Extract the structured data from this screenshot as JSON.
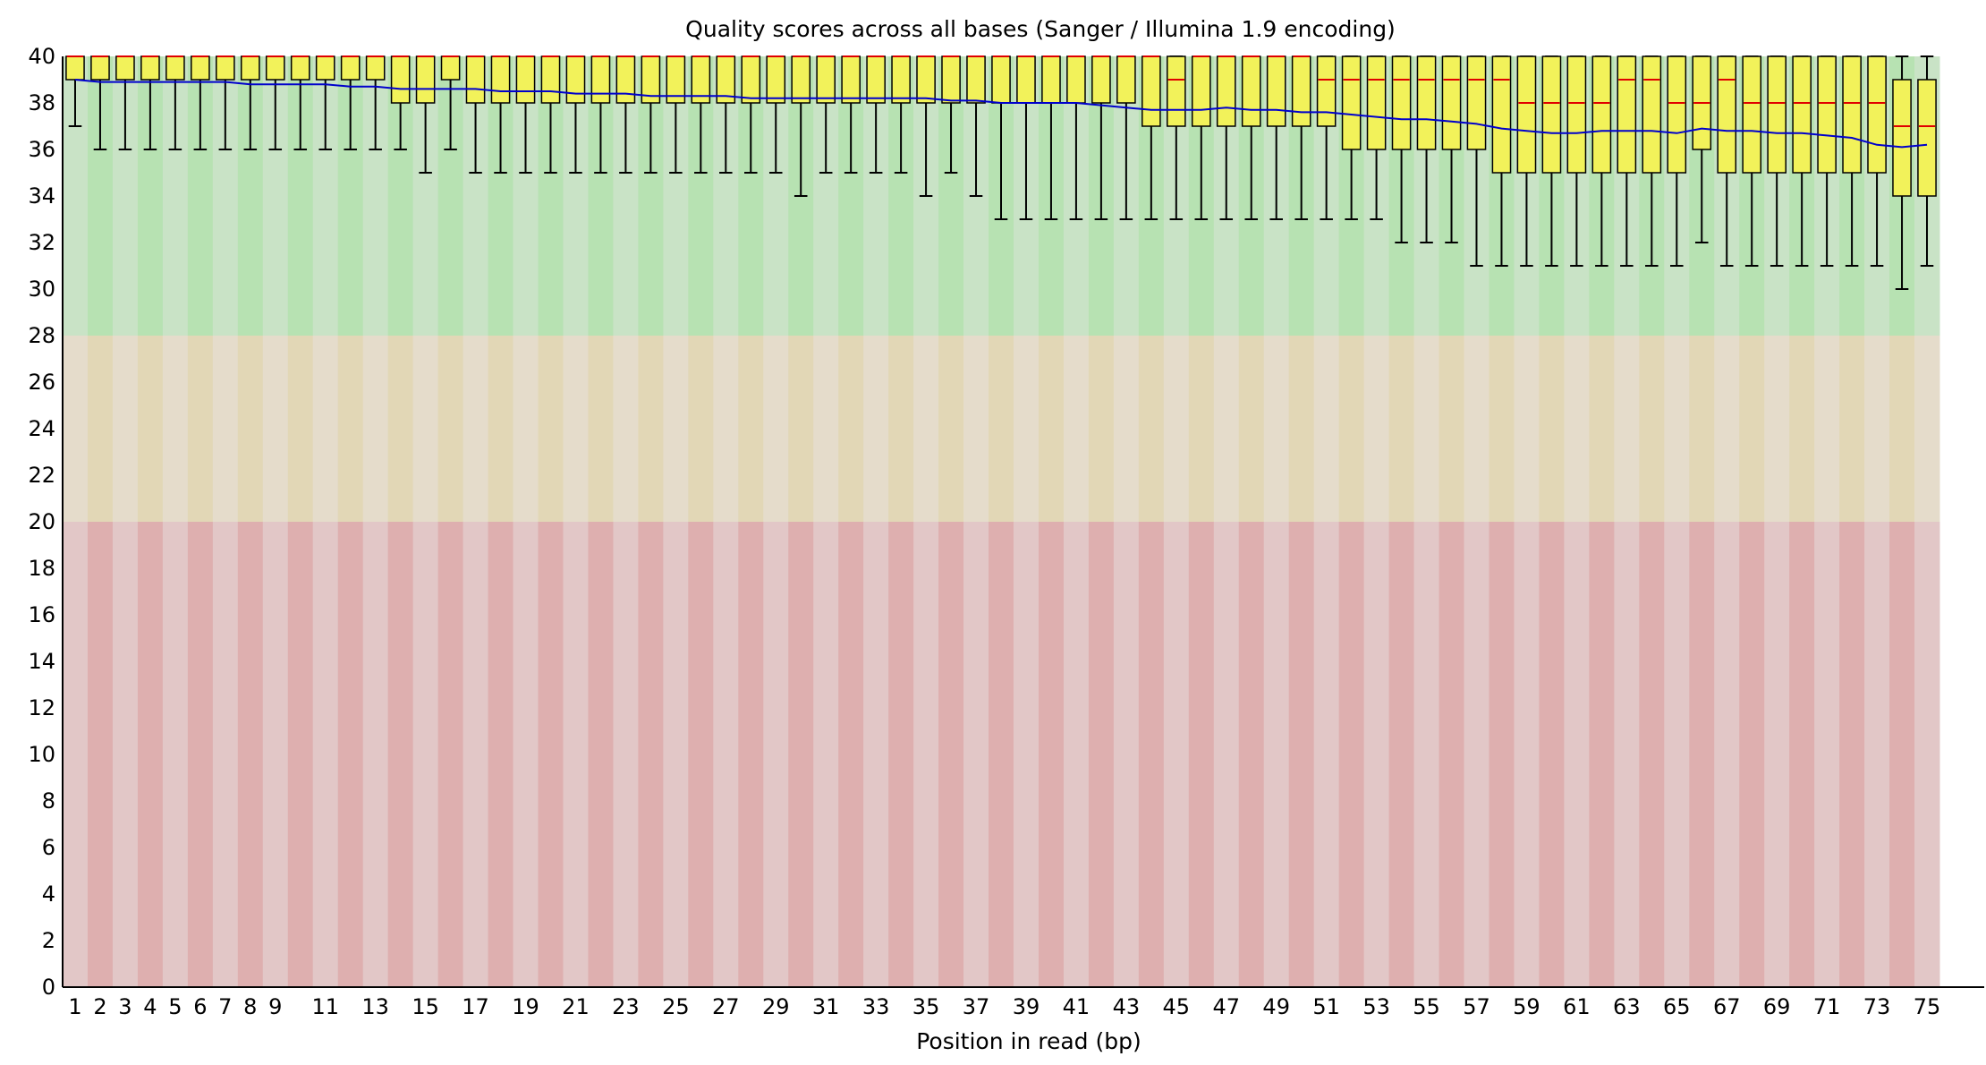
{
  "chart_data": {
    "type": "boxplot",
    "title": "Quality scores across all bases (Sanger / Illumina 1.9 encoding)",
    "xlabel": "Position in read (bp)",
    "ylabel": "",
    "ylim": [
      0,
      40
    ],
    "yticks": [
      0,
      2,
      4,
      6,
      8,
      10,
      12,
      14,
      16,
      18,
      20,
      22,
      24,
      26,
      28,
      30,
      32,
      34,
      36,
      38,
      40
    ],
    "xticks": [
      "1",
      "2",
      "3",
      "4",
      "5",
      "6",
      "7",
      "8",
      "9",
      "11",
      "13",
      "15",
      "17",
      "19",
      "21",
      "23",
      "25",
      "27",
      "29",
      "31",
      "33",
      "35",
      "37",
      "39",
      "41",
      "43",
      "45",
      "47",
      "49",
      "51",
      "53",
      "55",
      "57",
      "59",
      "61",
      "63",
      "65",
      "67",
      "69",
      "71",
      "73",
      "75"
    ],
    "grid": false,
    "bands": [
      {
        "from": 28,
        "to": 40,
        "colors": [
          "#c9e3c6",
          "#b7e2b2"
        ]
      },
      {
        "from": 20,
        "to": 28,
        "colors": [
          "#e5dccb",
          "#e2d7b6"
        ]
      },
      {
        "from": 0,
        "to": 20,
        "colors": [
          "#e2c7c7",
          "#deafaf"
        ]
      }
    ],
    "colors": {
      "box": "#f2f25a",
      "median": "#e00000",
      "mean": "#0000cc",
      "whisker": "#000000"
    },
    "series": [
      {
        "name": "positions",
        "positions": [
          1,
          2,
          3,
          4,
          5,
          6,
          7,
          8,
          9,
          10,
          11,
          12,
          13,
          14,
          15,
          16,
          17,
          18,
          19,
          20,
          21,
          22,
          23,
          24,
          25,
          26,
          27,
          28,
          29,
          30,
          31,
          32,
          33,
          34,
          35,
          36,
          37,
          38,
          39,
          40,
          41,
          42,
          43,
          44,
          45,
          46,
          47,
          48,
          49,
          50,
          51,
          52,
          53,
          54,
          55,
          56,
          57,
          58,
          59,
          60,
          61,
          62,
          63,
          64,
          65,
          66,
          67,
          68,
          69,
          70,
          71,
          72,
          73,
          74,
          75
        ]
      },
      {
        "name": "whisker_low",
        "values": [
          37,
          36,
          36,
          36,
          36,
          36,
          36,
          36,
          36,
          36,
          36,
          36,
          36,
          36,
          35,
          36,
          35,
          35,
          35,
          35,
          35,
          35,
          35,
          35,
          35,
          35,
          35,
          35,
          35,
          34,
          35,
          35,
          35,
          35,
          34,
          35,
          34,
          33,
          33,
          33,
          33,
          33,
          33,
          33,
          33,
          33,
          33,
          33,
          33,
          33,
          33,
          33,
          33,
          32,
          32,
          32,
          31,
          31,
          31,
          31,
          31,
          31,
          31,
          31,
          31,
          32,
          31,
          31,
          31,
          31,
          31,
          31,
          31,
          30,
          31
        ]
      },
      {
        "name": "q1",
        "values": [
          39,
          39,
          39,
          39,
          39,
          39,
          39,
          39,
          39,
          39,
          39,
          39,
          39,
          38,
          38,
          39,
          38,
          38,
          38,
          38,
          38,
          38,
          38,
          38,
          38,
          38,
          38,
          38,
          38,
          38,
          38,
          38,
          38,
          38,
          38,
          38,
          38,
          38,
          38,
          38,
          38,
          38,
          38,
          37,
          37,
          37,
          37,
          37,
          37,
          37,
          37,
          36,
          36,
          36,
          36,
          36,
          36,
          35,
          35,
          35,
          35,
          35,
          35,
          35,
          35,
          36,
          35,
          35,
          35,
          35,
          35,
          35,
          35,
          34,
          34
        ]
      },
      {
        "name": "median",
        "values": [
          40,
          40,
          40,
          40,
          40,
          40,
          40,
          40,
          40,
          40,
          40,
          40,
          40,
          40,
          40,
          40,
          40,
          40,
          40,
          40,
          40,
          40,
          40,
          40,
          40,
          40,
          40,
          40,
          40,
          40,
          40,
          40,
          40,
          40,
          40,
          40,
          40,
          40,
          40,
          40,
          40,
          40,
          40,
          40,
          39,
          40,
          40,
          40,
          40,
          40,
          39,
          39,
          39,
          39,
          39,
          39,
          39,
          39,
          38,
          38,
          38,
          38,
          39,
          39,
          38,
          38,
          39,
          38,
          38,
          38,
          38,
          38,
          38,
          37,
          37
        ]
      },
      {
        "name": "q3",
        "values": [
          40,
          40,
          40,
          40,
          40,
          40,
          40,
          40,
          40,
          40,
          40,
          40,
          40,
          40,
          40,
          40,
          40,
          40,
          40,
          40,
          40,
          40,
          40,
          40,
          40,
          40,
          40,
          40,
          40,
          40,
          40,
          40,
          40,
          40,
          40,
          40,
          40,
          40,
          40,
          40,
          40,
          40,
          40,
          40,
          40,
          40,
          40,
          40,
          40,
          40,
          40,
          40,
          40,
          40,
          40,
          40,
          40,
          40,
          40,
          40,
          40,
          40,
          40,
          40,
          40,
          40,
          40,
          40,
          40,
          40,
          40,
          40,
          40,
          39,
          39
        ]
      },
      {
        "name": "whisker_high",
        "values": [
          40,
          40,
          40,
          40,
          40,
          40,
          40,
          40,
          40,
          40,
          40,
          40,
          40,
          40,
          40,
          40,
          40,
          40,
          40,
          40,
          40,
          40,
          40,
          40,
          40,
          40,
          40,
          40,
          40,
          40,
          40,
          40,
          40,
          40,
          40,
          40,
          40,
          40,
          40,
          40,
          40,
          40,
          40,
          40,
          40,
          40,
          40,
          40,
          40,
          40,
          40,
          40,
          40,
          40,
          40,
          40,
          40,
          40,
          40,
          40,
          40,
          40,
          40,
          40,
          40,
          40,
          40,
          40,
          40,
          40,
          40,
          40,
          40,
          40,
          40
        ]
      },
      {
        "name": "mean",
        "values": [
          39,
          38.9,
          38.9,
          38.9,
          38.9,
          38.9,
          38.9,
          38.8,
          38.8,
          38.8,
          38.8,
          38.7,
          38.7,
          38.6,
          38.6,
          38.6,
          38.6,
          38.5,
          38.5,
          38.5,
          38.4,
          38.4,
          38.4,
          38.3,
          38.3,
          38.3,
          38.3,
          38.2,
          38.2,
          38.2,
          38.2,
          38.2,
          38.2,
          38.2,
          38.2,
          38.1,
          38.1,
          38,
          38,
          38,
          38,
          37.9,
          37.8,
          37.7,
          37.7,
          37.7,
          37.8,
          37.7,
          37.7,
          37.6,
          37.6,
          37.5,
          37.4,
          37.3,
          37.3,
          37.2,
          37.1,
          36.9,
          36.8,
          36.7,
          36.7,
          36.8,
          36.8,
          36.8,
          36.7,
          36.9,
          36.8,
          36.8,
          36.7,
          36.7,
          36.6,
          36.5,
          36.2,
          36.1,
          36.2
        ]
      }
    ]
  }
}
